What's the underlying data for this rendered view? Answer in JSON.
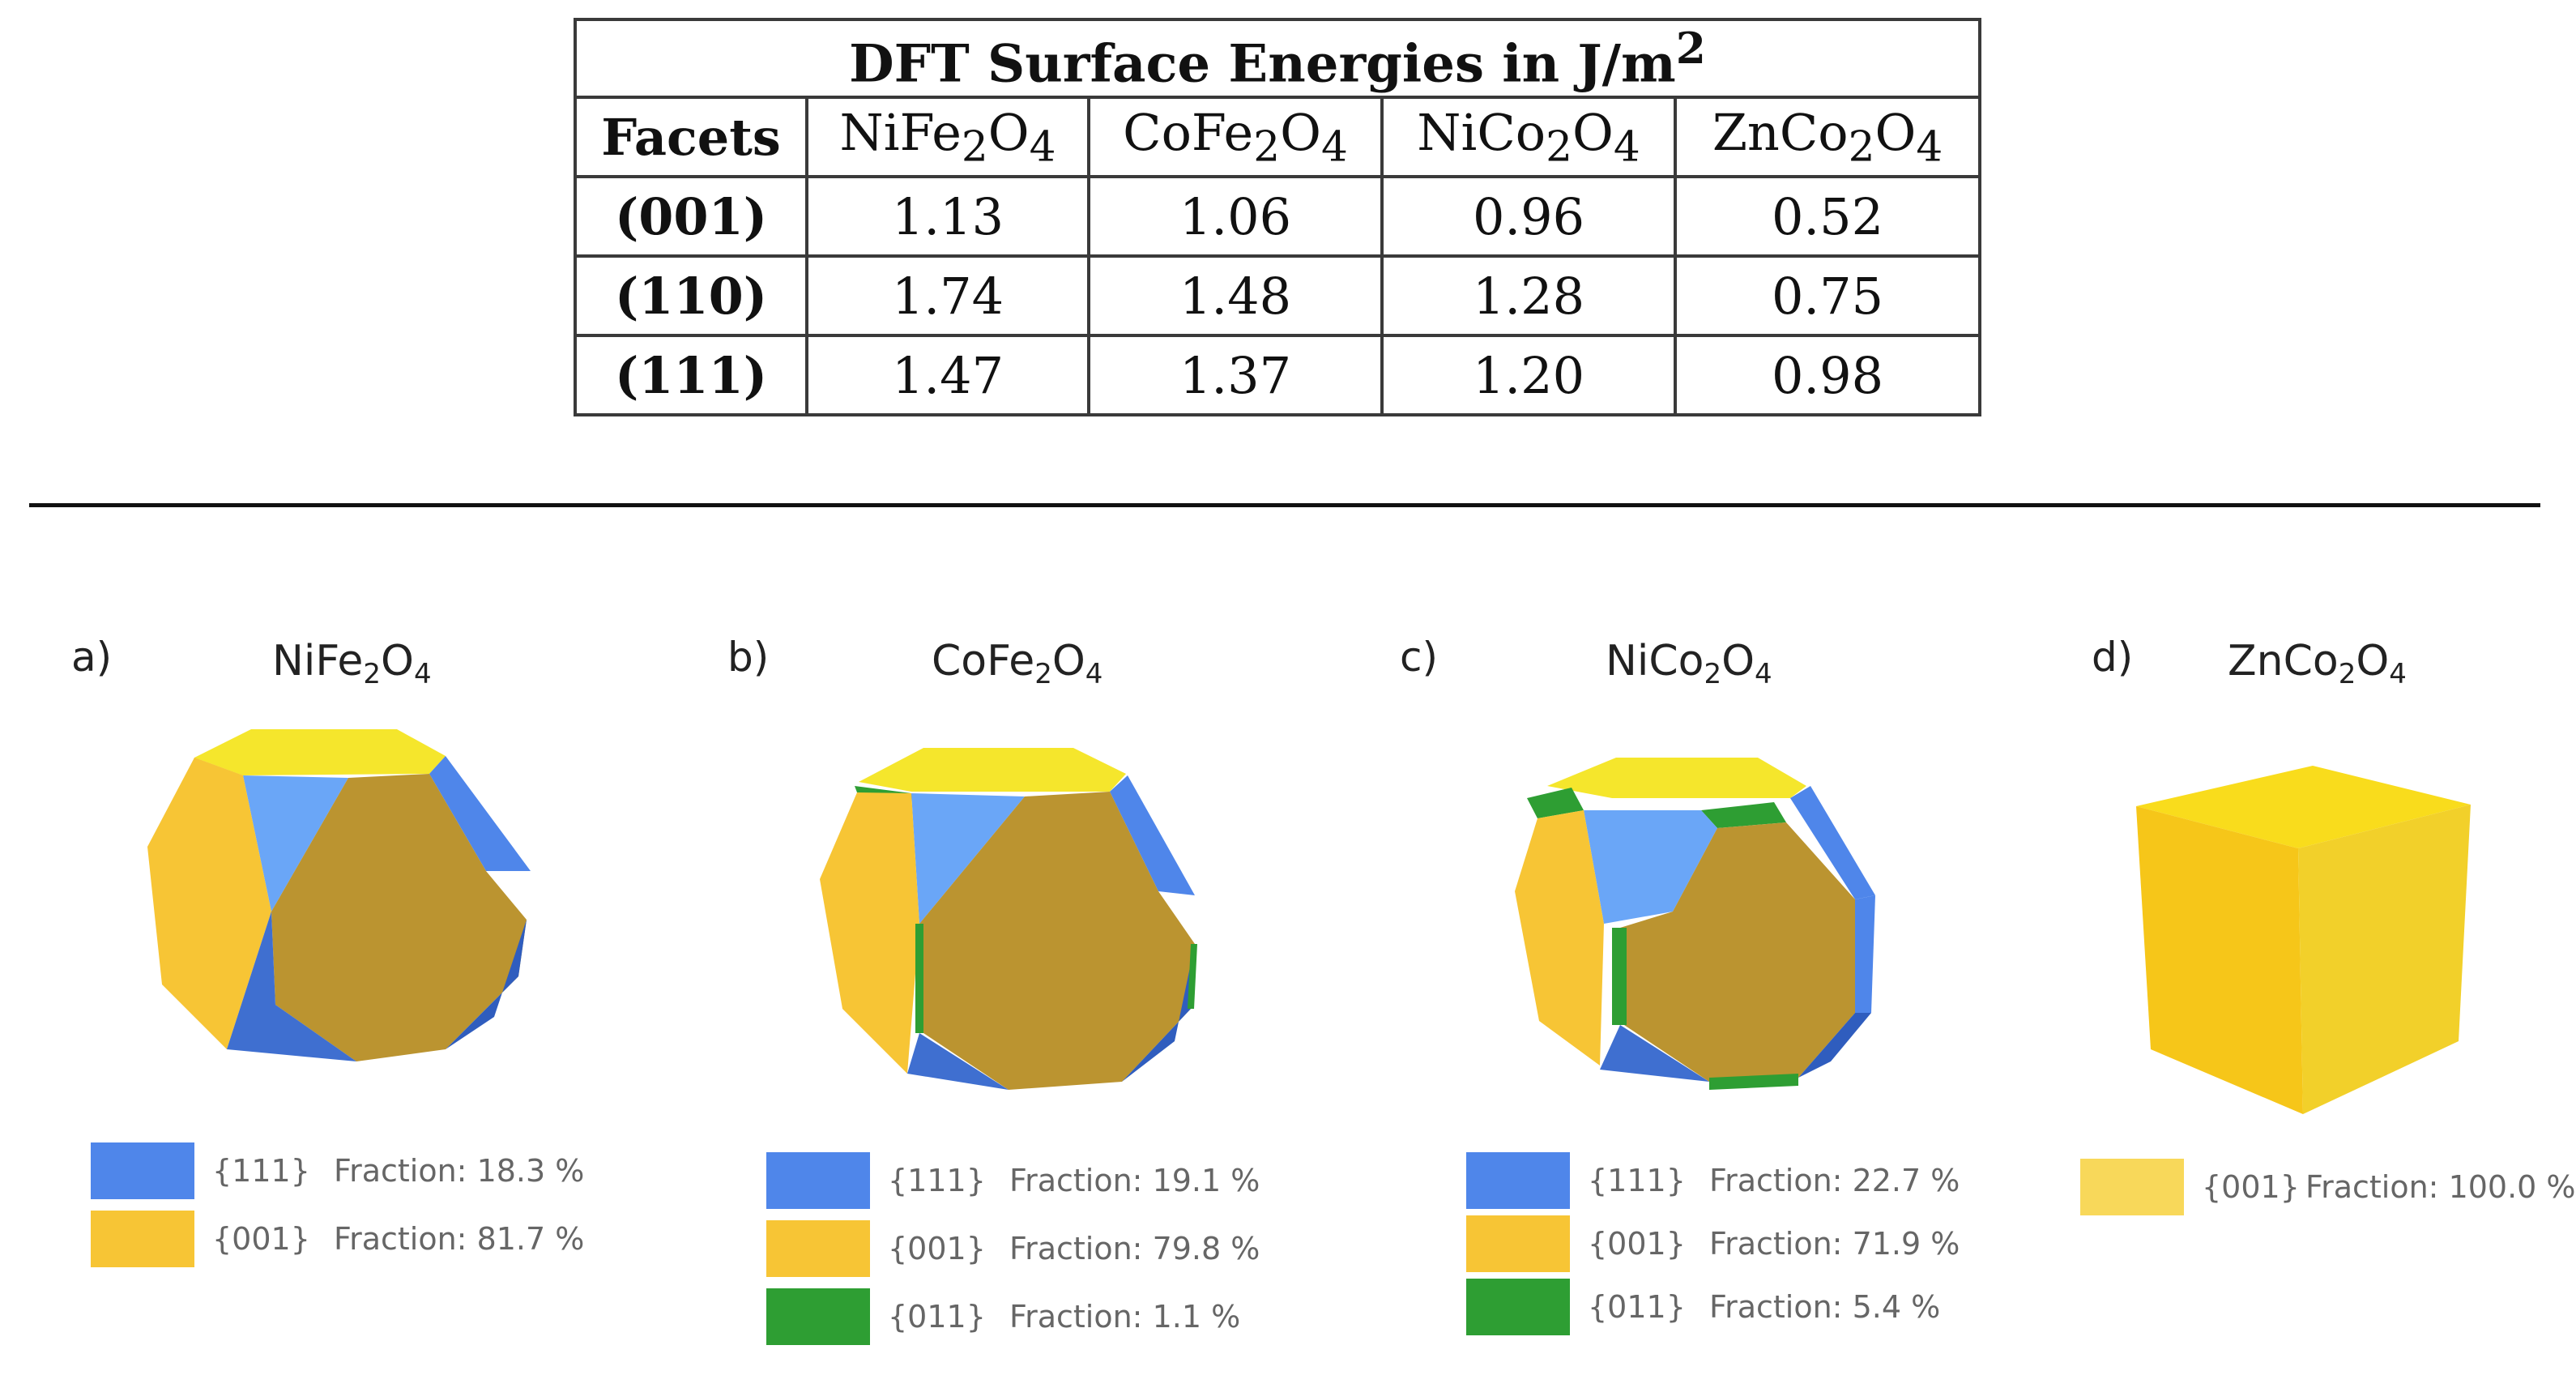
{
  "table": {
    "title": "DFT Surface Energies in J/m",
    "title_sup": "2",
    "header_first": "Facets",
    "columns": [
      {
        "base1": "NiFe",
        "sub1": "2",
        "base2": "O",
        "sub2": "4"
      },
      {
        "base1": "CoFe",
        "sub1": "2",
        "base2": "O",
        "sub2": "4"
      },
      {
        "base1": "NiCo",
        "sub1": "2",
        "base2": "O",
        "sub2": "4"
      },
      {
        "base1": "ZnCo",
        "sub1": "2",
        "base2": "O",
        "sub2": "4"
      }
    ],
    "rows": [
      {
        "facet": "(001)",
        "values": [
          "1.13",
          "1.06",
          "0.96",
          "0.52"
        ]
      },
      {
        "facet": "(110)",
        "values": [
          "1.74",
          "1.48",
          "1.28",
          "0.75"
        ]
      },
      {
        "facet": "(111)",
        "values": [
          "1.47",
          "1.37",
          "1.20",
          "0.98"
        ]
      }
    ]
  },
  "colors": {
    "facet_111": "#4f86ea",
    "facet_001": "#f7c535",
    "facet_011": "#2e9e33",
    "top_face": "#f5e62c",
    "front_001": "#bb9430"
  },
  "panels": [
    {
      "letter": "a)",
      "title": {
        "base1": "NiFe",
        "sub1": "2",
        "base2": "O",
        "sub2": "4"
      },
      "legend": [
        {
          "facet": "{111}",
          "fraction": "Fraction: 18.3 %",
          "color": "#4f86ea"
        },
        {
          "facet": "{001}",
          "fraction": "Fraction: 81.7 %",
          "color": "#f7c535"
        }
      ]
    },
    {
      "letter": "b)",
      "title": {
        "base1": "CoFe",
        "sub1": "2",
        "base2": "O",
        "sub2": "4"
      },
      "legend": [
        {
          "facet": "{111}",
          "fraction": "Fraction: 19.1 %",
          "color": "#4f86ea"
        },
        {
          "facet": "{001}",
          "fraction": "Fraction: 79.8 %",
          "color": "#f7c535"
        },
        {
          "facet": "{011}",
          "fraction": "Fraction: 1.1 %",
          "color": "#2e9e33"
        }
      ]
    },
    {
      "letter": "c)",
      "title": {
        "base1": "NiCo",
        "sub1": "2",
        "base2": "O",
        "sub2": "4"
      },
      "legend": [
        {
          "facet": "{111}",
          "fraction": "Fraction: 22.7 %",
          "color": "#4f86ea"
        },
        {
          "facet": "{001}",
          "fraction": "Fraction: 71.9 %",
          "color": "#f7c535"
        },
        {
          "facet": "{011}",
          "fraction": "Fraction: 5.4 %",
          "color": "#2e9e33"
        }
      ]
    },
    {
      "letter": "d)",
      "title": {
        "base1": "ZnCo",
        "sub1": "2",
        "base2": "O",
        "sub2": "4"
      },
      "legend": [
        {
          "facet": "{001}",
          "fraction": "Fraction: 100.0 %",
          "color": "#f8d85a"
        }
      ]
    }
  ]
}
